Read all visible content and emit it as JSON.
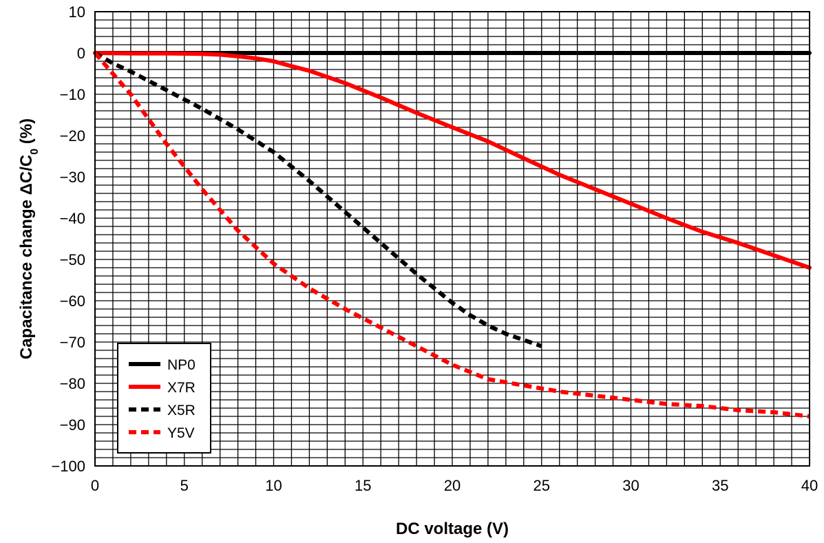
{
  "chart_data": {
    "type": "line",
    "title": "",
    "xlabel": "DC voltage (V)",
    "ylabel_parts": {
      "main": "Capacitance change ΔC/C",
      "sub": "0",
      "tail": " (%)"
    },
    "xlim": [
      0,
      40
    ],
    "ylim": [
      -100,
      10
    ],
    "x_ticks": [
      0,
      5,
      10,
      15,
      20,
      25,
      30,
      35,
      40
    ],
    "x_tick_labels": [
      "0",
      "5",
      "10",
      "15",
      "20",
      "25",
      "30",
      "35",
      "40"
    ],
    "y_ticks": [
      10,
      0,
      -10,
      -20,
      -30,
      -40,
      -50,
      -60,
      -70,
      -80,
      -90,
      -100
    ],
    "y_tick_labels": [
      "10",
      "0",
      "−10",
      "−20",
      "−30",
      "−40",
      "−50",
      "−60",
      "−70",
      "−80",
      "−90",
      "−100"
    ],
    "grid": true,
    "minor_grid": {
      "x_step": 1,
      "y_step": 2
    },
    "legend_position": "bottom-left",
    "series": [
      {
        "name": "NP0",
        "color": "#000000",
        "dashed": false,
        "x": [
          0,
          40
        ],
        "y": [
          0,
          0
        ]
      },
      {
        "name": "X7R",
        "color": "#ff0000",
        "dashed": false,
        "x": [
          0,
          2,
          4,
          6,
          7,
          8,
          9,
          10,
          11,
          12,
          14,
          16,
          18,
          20,
          22,
          24,
          26,
          28,
          30,
          32,
          34,
          36,
          38,
          40
        ],
        "y": [
          0,
          -0.1,
          -0.1,
          -0.2,
          -0.4,
          -0.8,
          -1.3,
          -2.0,
          -3.2,
          -4.3,
          -7.3,
          -10.8,
          -14.5,
          -18.0,
          -21.4,
          -25.5,
          -29.5,
          -33.0,
          -36.5,
          -40.0,
          -43.3,
          -46.0,
          -49.0,
          -52.0
        ]
      },
      {
        "name": "X5R",
        "color": "#000000",
        "dashed": true,
        "x": [
          0,
          1,
          2,
          4,
          6,
          8,
          10,
          12,
          14,
          16,
          18,
          20,
          21,
          22,
          23,
          24,
          25
        ],
        "y": [
          0,
          -2.5,
          -4.5,
          -9.0,
          -13.5,
          -18.5,
          -24.0,
          -31.0,
          -38.5,
          -46.0,
          -53.5,
          -60.5,
          -63.5,
          -66.0,
          -68.0,
          -69.5,
          -71.0
        ]
      },
      {
        "name": "Y5V",
        "color": "#ff0000",
        "dashed": true,
        "x": [
          0,
          1,
          2,
          3,
          4,
          6,
          8,
          10,
          12,
          14,
          16,
          18,
          20,
          22,
          24,
          26,
          28,
          30,
          32,
          34,
          36,
          38,
          40
        ],
        "y": [
          0,
          -5,
          -10,
          -16,
          -22,
          -33,
          -43,
          -51,
          -57,
          -62,
          -66.5,
          -71,
          -75.5,
          -79,
          -80.5,
          -82,
          -83,
          -84,
          -85,
          -85.5,
          -86.5,
          -87,
          -88
        ]
      }
    ]
  }
}
